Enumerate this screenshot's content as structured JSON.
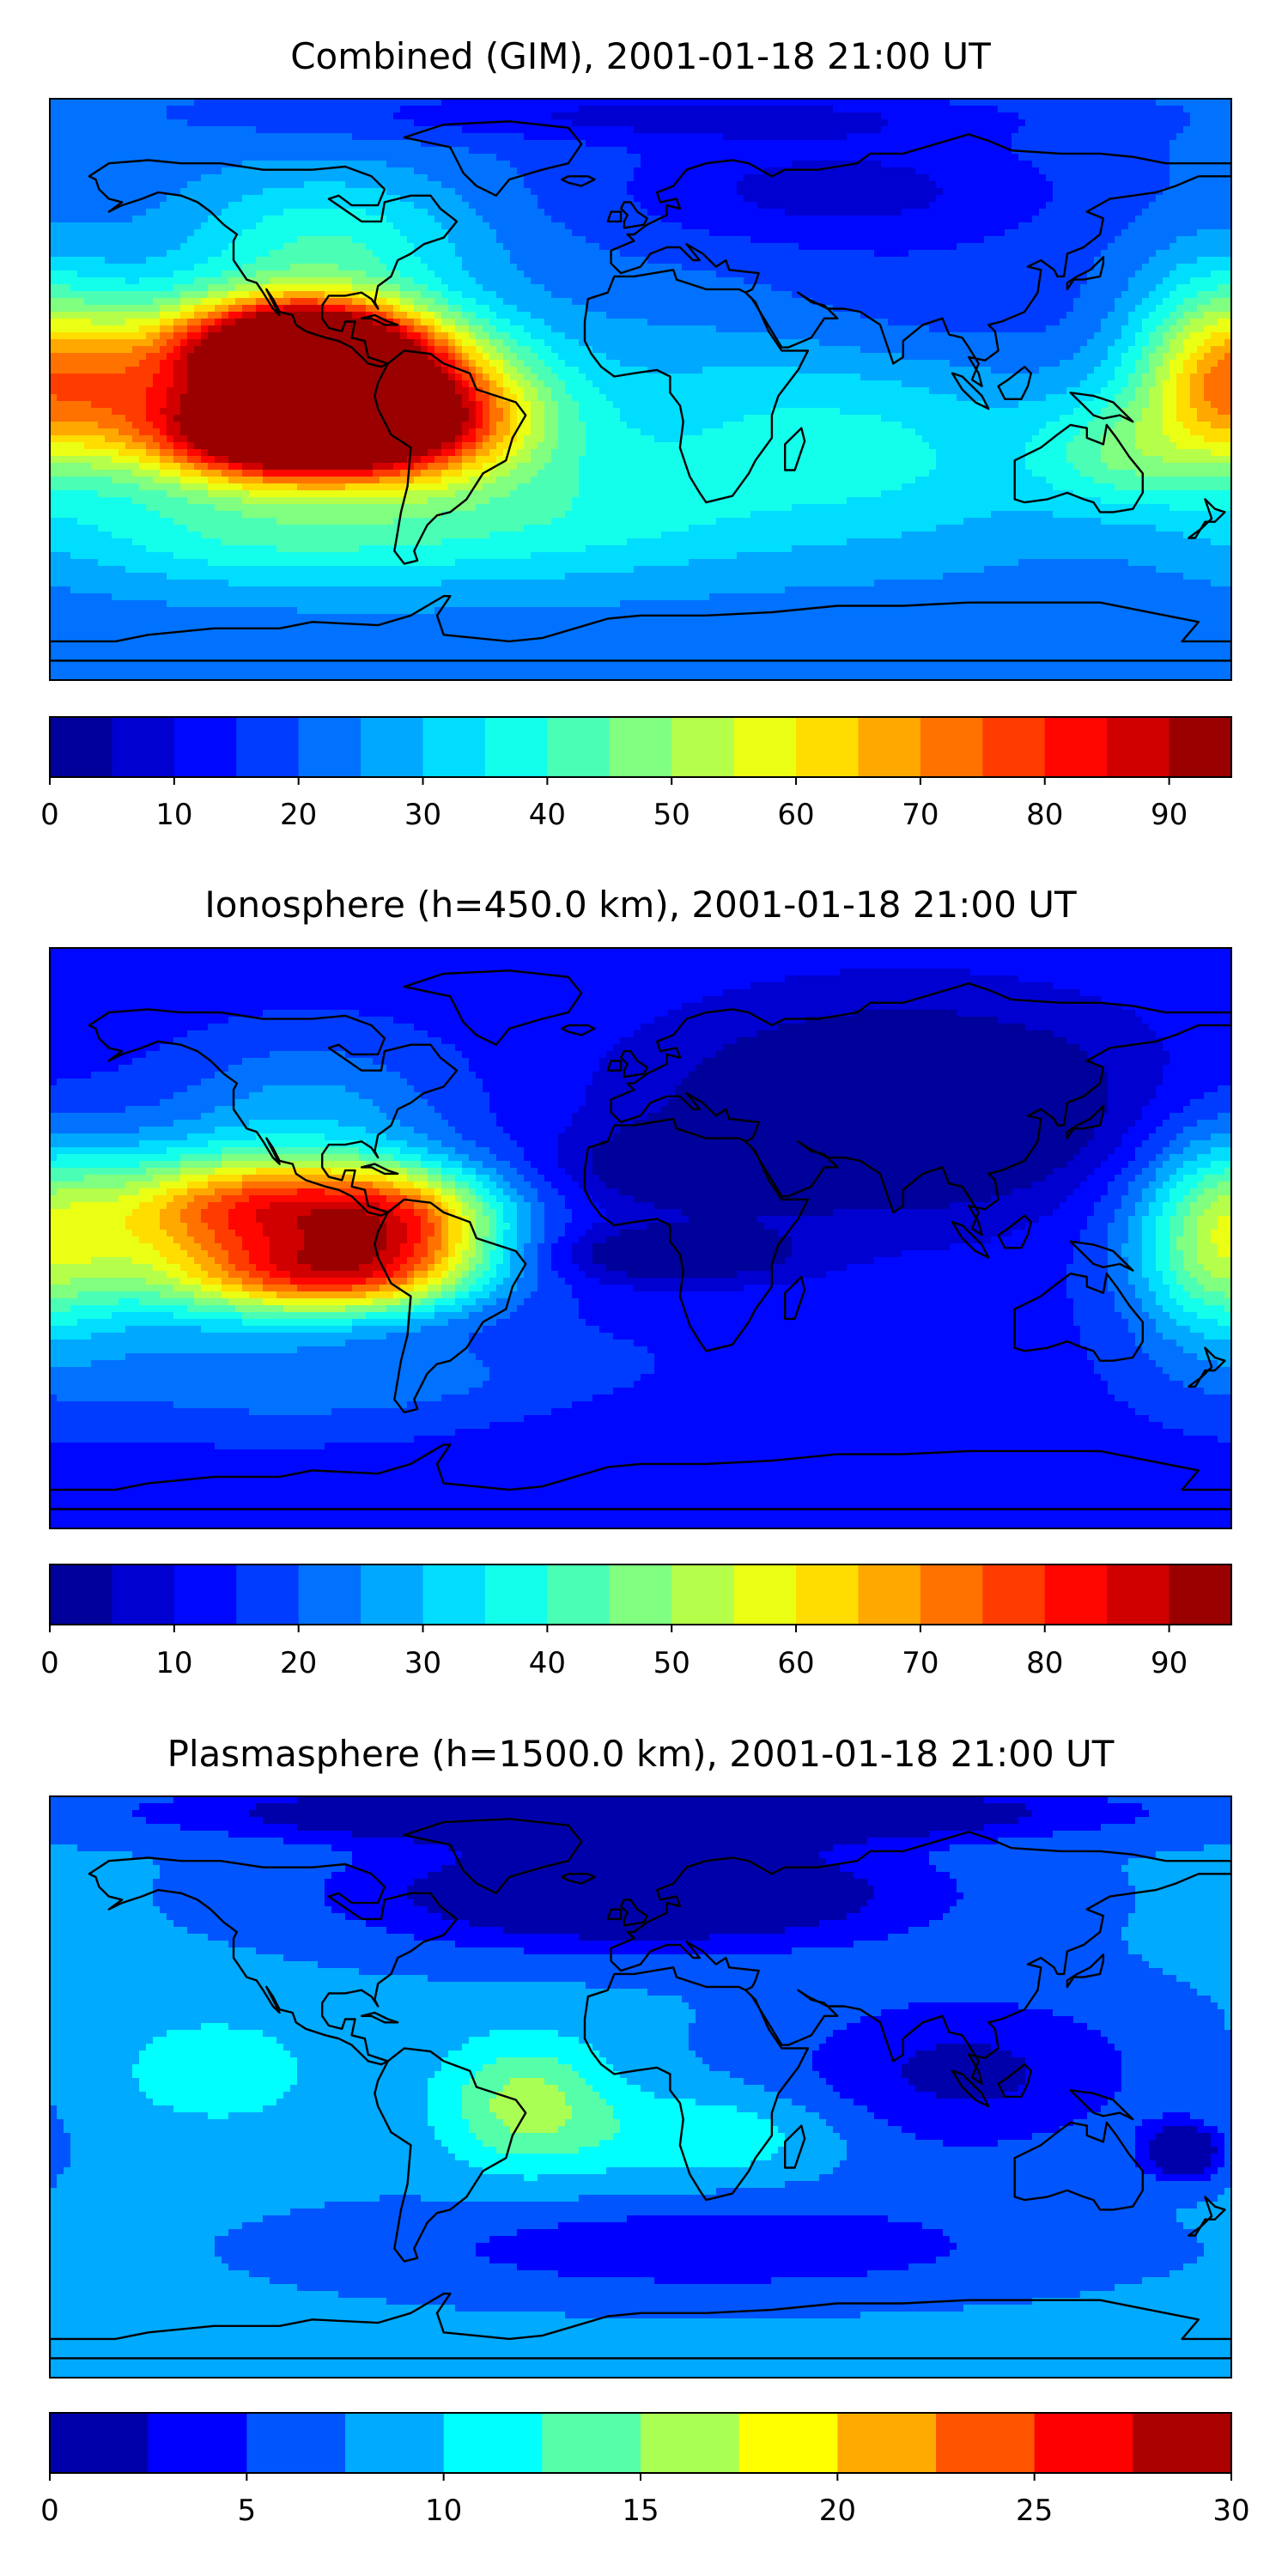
{
  "chart_data": [
    {
      "type": "heatmap",
      "title": "Combined (GIM), 2001-01-18 21:00 UT",
      "map": "world-equirectangular",
      "x_range_deg_lon": [
        -180,
        180
      ],
      "y_range_deg_lat": [
        -90,
        90
      ],
      "coastlines": true,
      "colormap": "jet",
      "colorbar": {
        "levels": [
          0,
          5,
          10,
          15,
          20,
          25,
          30,
          35,
          40,
          45,
          50,
          55,
          60,
          65,
          70,
          75,
          80,
          85,
          90,
          95
        ],
        "ticks": [
          0,
          10,
          20,
          30,
          40,
          50,
          60,
          70,
          80,
          90
        ],
        "range": [
          0,
          95
        ]
      },
      "background": 22,
      "features": [
        {
          "lon": -105,
          "lat": 15,
          "value": 86,
          "s_lon": 24,
          "s_lat": 10
        },
        {
          "lon": -85,
          "lat": 5,
          "value": 80,
          "s_lon": 30,
          "s_lat": 13
        },
        {
          "lon": -110,
          "lat": -15,
          "value": 84,
          "s_lon": 26,
          "s_lat": 10
        },
        {
          "lon": -72,
          "lat": -12,
          "value": 74,
          "s_lon": 28,
          "s_lat": 12
        },
        {
          "lon": -150,
          "lat": 0,
          "value": 60,
          "s_lon": 30,
          "s_lat": 18
        },
        {
          "lon": -95,
          "lat": 45,
          "value": 40,
          "s_lon": 30,
          "s_lat": 15
        },
        {
          "lon": -120,
          "lat": -45,
          "value": 36,
          "s_lon": 45,
          "s_lat": 12
        },
        {
          "lon": -35,
          "lat": -40,
          "value": 36,
          "s_lon": 55,
          "s_lat": 15
        },
        {
          "lon": 35,
          "lat": -8,
          "value": 32,
          "s_lon": 50,
          "s_lat": 22
        },
        {
          "lon": 85,
          "lat": -25,
          "value": 30,
          "s_lon": 40,
          "s_lat": 20
        },
        {
          "lon": 175,
          "lat": 5,
          "value": 52,
          "s_lon": 18,
          "s_lat": 22
        },
        {
          "lon": 145,
          "lat": -20,
          "value": 38,
          "s_lon": 18,
          "s_lat": 12
        },
        {
          "lon": 60,
          "lat": 62,
          "value": 8,
          "s_lon": 55,
          "s_lat": 14
        },
        {
          "lon": 90,
          "lat": 25,
          "value": 16,
          "s_lon": 45,
          "s_lat": 14
        },
        {
          "lon": 5,
          "lat": 85,
          "value": 10,
          "s_lon": 80,
          "s_lat": 6
        }
      ]
    },
    {
      "type": "heatmap",
      "title": "Ionosphere  (h=450.0 km), 2001-01-18 21:00 UT",
      "map": "world-equirectangular",
      "x_range_deg_lon": [
        -180,
        180
      ],
      "y_range_deg_lat": [
        -90,
        90
      ],
      "coastlines": true,
      "colormap": "jet",
      "colorbar": {
        "levels": [
          0,
          5,
          10,
          15,
          20,
          25,
          30,
          35,
          40,
          45,
          50,
          55,
          60,
          65,
          70,
          75,
          80,
          85,
          90,
          95
        ],
        "ticks": [
          0,
          10,
          20,
          30,
          40,
          50,
          60,
          70,
          80,
          90
        ],
        "range": [
          0,
          95
        ]
      },
      "background": 13,
      "features": [
        {
          "lon": -110,
          "lat": 10,
          "value": 62,
          "s_lon": 30,
          "s_lat": 11
        },
        {
          "lon": -95,
          "lat": -12,
          "value": 66,
          "s_lon": 30,
          "s_lat": 9
        },
        {
          "lon": -70,
          "lat": 5,
          "value": 56,
          "s_lon": 22,
          "s_lat": 12
        },
        {
          "lon": -150,
          "lat": 0,
          "value": 40,
          "s_lon": 35,
          "s_lat": 20
        },
        {
          "lon": -100,
          "lat": 40,
          "value": 26,
          "s_lon": 30,
          "s_lat": 16
        },
        {
          "lon": -90,
          "lat": -45,
          "value": 24,
          "s_lon": 60,
          "s_lat": 12
        },
        {
          "lon": 175,
          "lat": 0,
          "value": 38,
          "s_lon": 18,
          "s_lat": 24
        },
        {
          "lon": 80,
          "lat": 40,
          "value": -8,
          "s_lon": 50,
          "s_lat": 22
        },
        {
          "lon": 20,
          "lat": 22,
          "value": -4,
          "s_lon": 25,
          "s_lat": 8
        },
        {
          "lon": 10,
          "lat": -5,
          "value": -4,
          "s_lon": 25,
          "s_lat": 6
        },
        {
          "lon": -15,
          "lat": -55,
          "value": 10,
          "s_lon": 70,
          "s_lat": 10
        }
      ]
    },
    {
      "type": "heatmap",
      "title": "Plasmasphere (h=1500.0 km), 2001-01-18 21:00 UT",
      "map": "world-equirectangular",
      "x_range_deg_lon": [
        -180,
        180
      ],
      "y_range_deg_lat": [
        -90,
        90
      ],
      "coastlines": true,
      "colormap": "jet",
      "colorbar": {
        "levels": [
          0,
          2.5,
          5,
          7.5,
          10,
          12.5,
          15,
          17.5,
          20,
          22.5,
          25,
          27.5,
          30
        ],
        "ticks": [
          0,
          5,
          10,
          15,
          20,
          25,
          30
        ],
        "range": [
          0,
          30
        ]
      },
      "background": 8,
      "features": [
        {
          "lon": -130,
          "lat": 5,
          "value": 12,
          "s_lon": 22,
          "s_lat": 12
        },
        {
          "lon": -35,
          "lat": -5,
          "value": 16,
          "s_lon": 18,
          "s_lat": 14
        },
        {
          "lon": 25,
          "lat": -15,
          "value": 13,
          "s_lon": 30,
          "s_lat": 10
        },
        {
          "lon": -85,
          "lat": -5,
          "value": 8,
          "s_lon": 40,
          "s_lat": 22
        },
        {
          "lon": 60,
          "lat": -20,
          "value": 7,
          "s_lon": 35,
          "s_lat": 18
        },
        {
          "lon": 20,
          "lat": -50,
          "value": 3,
          "s_lon": 70,
          "s_lat": 10
        },
        {
          "lon": 100,
          "lat": 5,
          "value": 2,
          "s_lon": 40,
          "s_lat": 18
        },
        {
          "lon": 0,
          "lat": 60,
          "value": -3,
          "s_lon": 60,
          "s_lat": 12
        },
        {
          "lon": 0,
          "lat": 85,
          "value": -5,
          "s_lon": 90,
          "s_lat": 6
        },
        {
          "lon": 165,
          "lat": -20,
          "value": -3,
          "s_lon": 8,
          "s_lat": 6
        }
      ]
    }
  ]
}
